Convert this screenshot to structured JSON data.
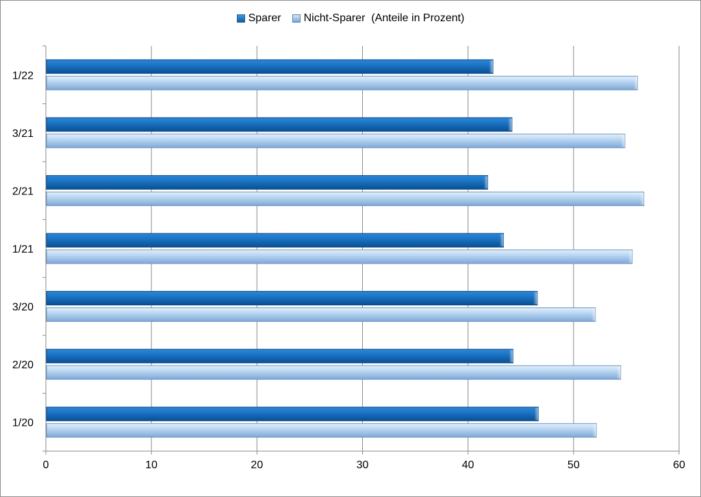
{
  "chart_data": {
    "type": "bar",
    "orientation": "horizontal",
    "categories": [
      "1/20",
      "2/20",
      "3/20",
      "1/21",
      "2/21",
      "3/21",
      "1/22"
    ],
    "series": [
      {
        "name": "Sparer",
        "values": [
          46.6,
          44.2,
          46.5,
          43.3,
          41.8,
          44.1,
          42.3
        ],
        "color": "#1a6fc0"
      },
      {
        "name": "Nicht-Sparer  (Anteile in Prozent)",
        "values": [
          52.1,
          54.4,
          52.0,
          55.5,
          56.6,
          54.8,
          56.0
        ],
        "color": "#a9cbef"
      }
    ],
    "x_ticks": [
      "0",
      "10",
      "20",
      "30",
      "40",
      "50",
      "60"
    ],
    "xlim": [
      0,
      60
    ],
    "grid": true,
    "legend_position": "top"
  }
}
